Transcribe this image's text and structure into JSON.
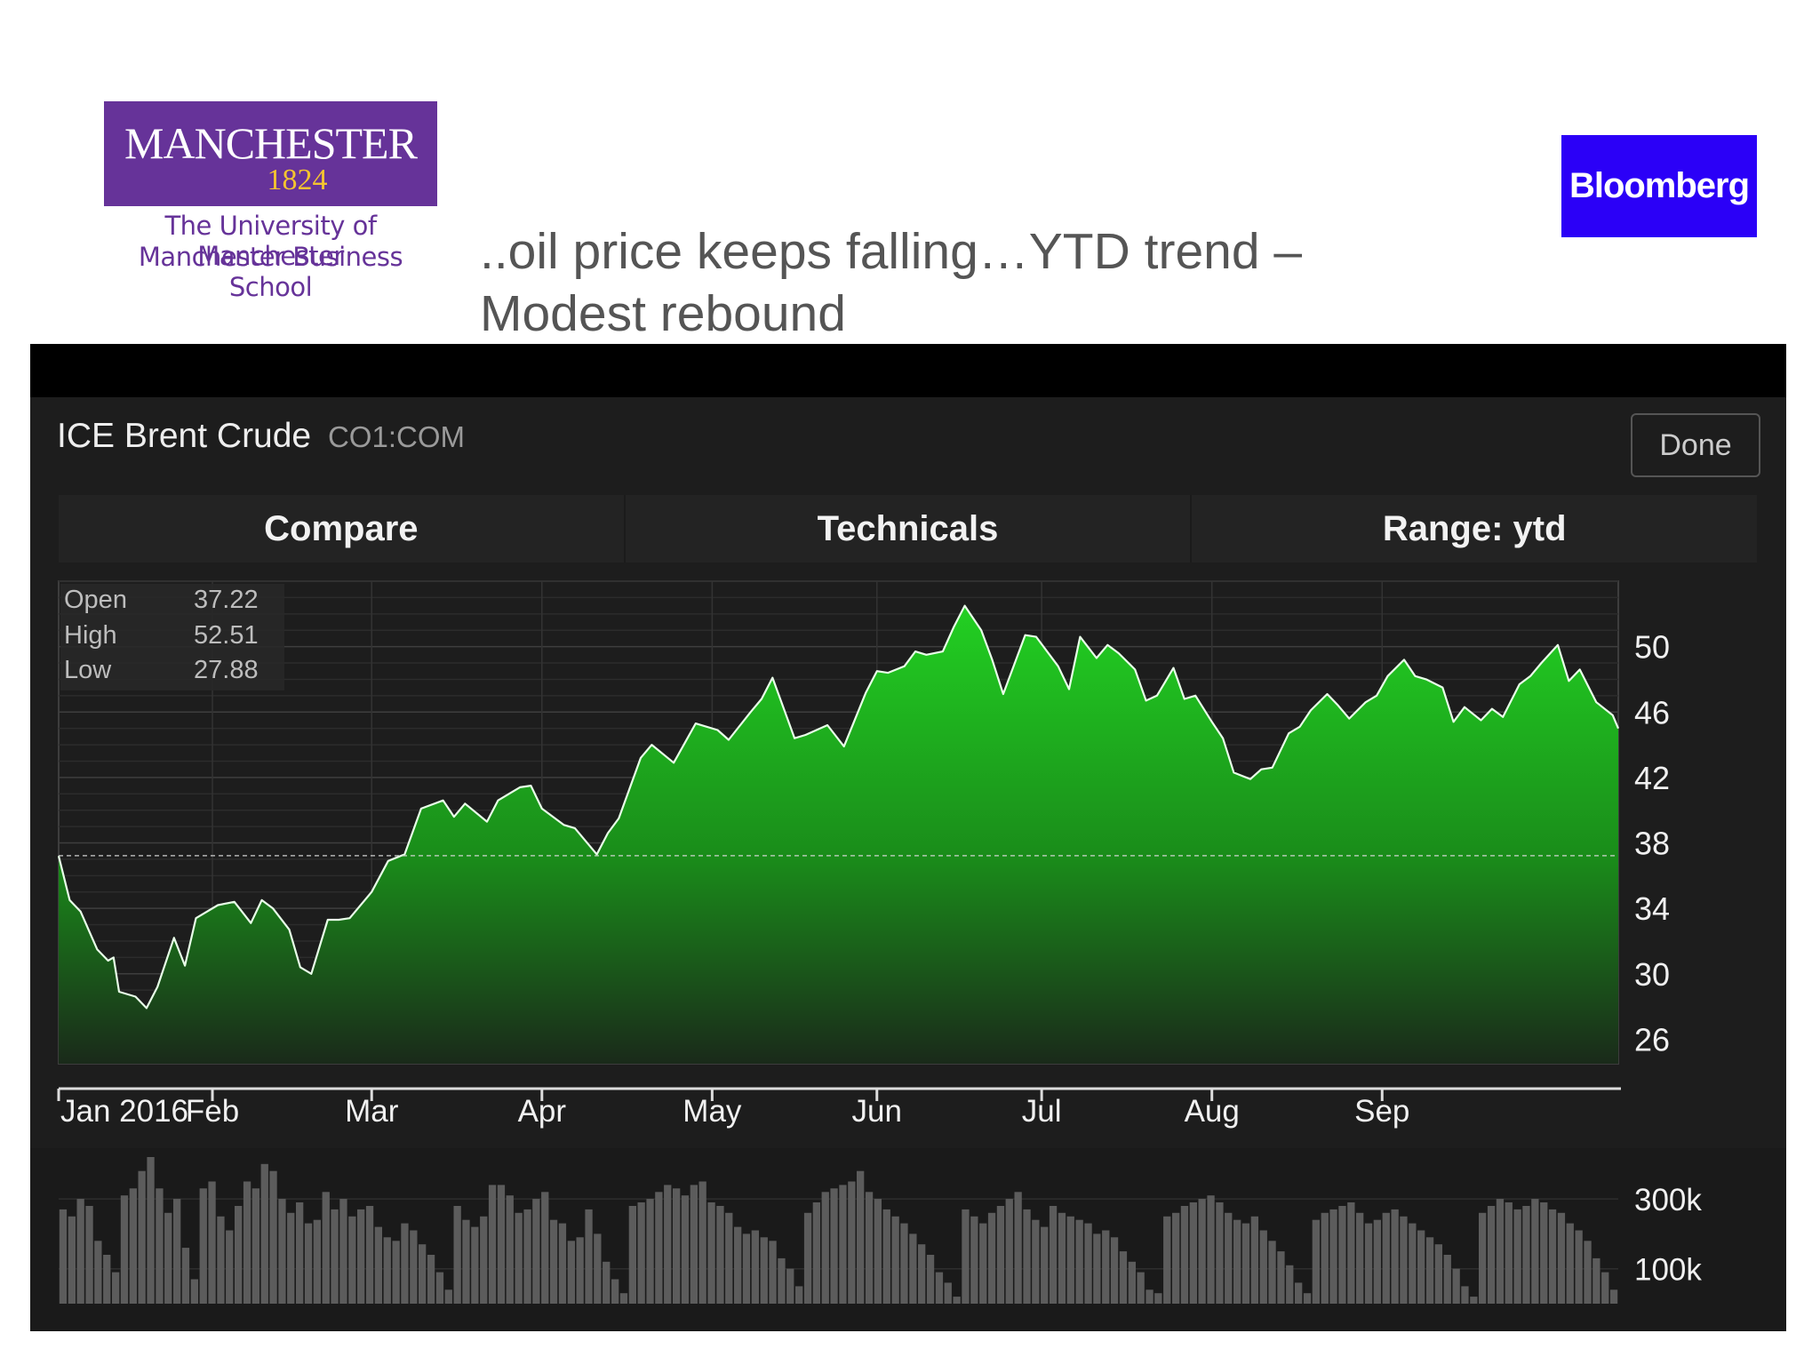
{
  "header": {
    "university_name": "MANCHESTER",
    "university_year": "1824",
    "university_sub1": "The University of Manchester",
    "university_sub2": "Manchester Business School",
    "brand_logo": "Bloomberg",
    "title_line1": "..oil price keeps falling…YTD trend –",
    "title_line2": "Modest rebound"
  },
  "panel": {
    "name": "ICE Brent Crude",
    "ticker": "CO1:COM",
    "done_label": "Done",
    "tabs": [
      "Compare",
      "Technicals",
      "Range: ytd"
    ]
  },
  "stats": [
    {
      "label": "Open",
      "value": "37.22"
    },
    {
      "label": "High",
      "value": "52.51"
    },
    {
      "label": "Low",
      "value": "27.88"
    }
  ],
  "colors": {
    "accent_green": "#22d022",
    "brand_purple": "#663399",
    "brand_gold": "#f4c430",
    "bloomberg_blue": "#2b00f7"
  },
  "chart_data": {
    "type": "area",
    "title": "ICE Brent Crude",
    "x_tick_labels": [
      "Jan 2016",
      "Feb",
      "Mar",
      "Apr",
      "May",
      "Jun",
      "Jul",
      "Aug",
      "Sep"
    ],
    "x_tick_dates": [
      "2016-01-04",
      "2016-02-01",
      "2016-03-01",
      "2016-04-01",
      "2016-05-02",
      "2016-06-01",
      "2016-07-01",
      "2016-08-01",
      "2016-09-01"
    ],
    "y_tick_labels": [
      50,
      46,
      42,
      38,
      34,
      30,
      26
    ],
    "ylim": [
      24.5,
      54
    ],
    "reference_line": 37.22,
    "grid": true,
    "series": [
      {
        "name": "CO1:COM",
        "points": [
          [
            "2016-01-04",
            37.2
          ],
          [
            "2016-01-06",
            34.5
          ],
          [
            "2016-01-08",
            33.8
          ],
          [
            "2016-01-11",
            31.5
          ],
          [
            "2016-01-13",
            30.8
          ],
          [
            "2016-01-14",
            31.0
          ],
          [
            "2016-01-15",
            28.9
          ],
          [
            "2016-01-18",
            28.6
          ],
          [
            "2016-01-20",
            27.9
          ],
          [
            "2016-01-22",
            29.2
          ],
          [
            "2016-01-25",
            32.2
          ],
          [
            "2016-01-27",
            30.5
          ],
          [
            "2016-01-29",
            33.4
          ],
          [
            "2016-02-02",
            34.2
          ],
          [
            "2016-02-05",
            34.4
          ],
          [
            "2016-02-08",
            33.1
          ],
          [
            "2016-02-10",
            34.5
          ],
          [
            "2016-02-12",
            34.0
          ],
          [
            "2016-02-15",
            32.7
          ],
          [
            "2016-02-17",
            30.4
          ],
          [
            "2016-02-19",
            30.0
          ],
          [
            "2016-02-22",
            33.3
          ],
          [
            "2016-02-24",
            33.3
          ],
          [
            "2016-02-26",
            33.4
          ],
          [
            "2016-03-01",
            35.0
          ],
          [
            "2016-03-04",
            36.9
          ],
          [
            "2016-03-07",
            37.3
          ],
          [
            "2016-03-10",
            40.1
          ],
          [
            "2016-03-14",
            40.6
          ],
          [
            "2016-03-16",
            39.6
          ],
          [
            "2016-03-18",
            40.4
          ],
          [
            "2016-03-22",
            39.3
          ],
          [
            "2016-03-24",
            40.6
          ],
          [
            "2016-03-28",
            41.4
          ],
          [
            "2016-03-30",
            41.5
          ],
          [
            "2016-04-01",
            40.1
          ],
          [
            "2016-04-05",
            39.1
          ],
          [
            "2016-04-07",
            38.9
          ],
          [
            "2016-04-11",
            37.3
          ],
          [
            "2016-04-13",
            38.6
          ],
          [
            "2016-04-15",
            39.5
          ],
          [
            "2016-04-19",
            43.2
          ],
          [
            "2016-04-21",
            44.0
          ],
          [
            "2016-04-25",
            42.9
          ],
          [
            "2016-04-27",
            44.1
          ],
          [
            "2016-04-29",
            45.3
          ],
          [
            "2016-05-03",
            44.9
          ],
          [
            "2016-05-05",
            44.3
          ],
          [
            "2016-05-09",
            46.0
          ],
          [
            "2016-05-11",
            46.8
          ],
          [
            "2016-05-13",
            48.1
          ],
          [
            "2016-05-17",
            44.4
          ],
          [
            "2016-05-19",
            44.6
          ],
          [
            "2016-05-23",
            45.2
          ],
          [
            "2016-05-26",
            43.9
          ],
          [
            "2016-05-30",
            47.2
          ],
          [
            "2016-06-01",
            48.5
          ],
          [
            "2016-06-03",
            48.4
          ],
          [
            "2016-06-06",
            48.8
          ],
          [
            "2016-06-08",
            49.7
          ],
          [
            "2016-06-10",
            49.5
          ],
          [
            "2016-06-13",
            49.7
          ],
          [
            "2016-06-15",
            51.2
          ],
          [
            "2016-06-17",
            52.5
          ],
          [
            "2016-06-20",
            51.0
          ],
          [
            "2016-06-22",
            49.2
          ],
          [
            "2016-06-24",
            47.1
          ],
          [
            "2016-06-28",
            50.7
          ],
          [
            "2016-06-30",
            50.6
          ],
          [
            "2016-07-04",
            48.8
          ],
          [
            "2016-07-06",
            47.4
          ],
          [
            "2016-07-08",
            50.6
          ],
          [
            "2016-07-11",
            49.3
          ],
          [
            "2016-07-13",
            50.1
          ],
          [
            "2016-07-15",
            49.6
          ],
          [
            "2016-07-18",
            48.6
          ],
          [
            "2016-07-20",
            46.7
          ],
          [
            "2016-07-22",
            47.0
          ],
          [
            "2016-07-25",
            48.7
          ],
          [
            "2016-07-27",
            46.8
          ],
          [
            "2016-07-29",
            47.0
          ],
          [
            "2016-08-01",
            45.4
          ],
          [
            "2016-08-03",
            44.4
          ],
          [
            "2016-08-05",
            42.3
          ],
          [
            "2016-08-08",
            41.9
          ],
          [
            "2016-08-10",
            42.5
          ],
          [
            "2016-08-12",
            42.6
          ],
          [
            "2016-08-15",
            44.7
          ],
          [
            "2016-08-17",
            45.1
          ],
          [
            "2016-08-19",
            46.1
          ],
          [
            "2016-08-22",
            47.1
          ],
          [
            "2016-08-24",
            46.4
          ],
          [
            "2016-08-26",
            45.6
          ],
          [
            "2016-08-29",
            46.6
          ],
          [
            "2016-08-31",
            47.0
          ],
          [
            "2016-09-02",
            48.2
          ],
          [
            "2016-09-05",
            49.2
          ],
          [
            "2016-09-07",
            48.2
          ],
          [
            "2016-09-09",
            48.0
          ],
          [
            "2016-09-12",
            47.5
          ],
          [
            "2016-09-14",
            45.4
          ],
          [
            "2016-09-16",
            46.3
          ],
          [
            "2016-09-19",
            45.5
          ],
          [
            "2016-09-21",
            46.2
          ],
          [
            "2016-09-23",
            45.7
          ],
          [
            "2016-09-26",
            47.7
          ],
          [
            "2016-09-28",
            48.2
          ],
          [
            "2016-09-30",
            49.0
          ],
          [
            "2016-10-03",
            50.1
          ],
          [
            "2016-10-05",
            47.9
          ],
          [
            "2016-10-07",
            48.6
          ],
          [
            "2016-10-10",
            46.6
          ],
          [
            "2016-10-13",
            45.8
          ],
          [
            "2016-10-14",
            45.0
          ]
        ]
      }
    ],
    "volume": {
      "y_tick_labels": [
        "300k",
        "100k"
      ],
      "ylim": [
        0,
        425000
      ],
      "values": [
        270000,
        250000,
        300000,
        280000,
        180000,
        140000,
        90000,
        310000,
        330000,
        380000,
        420000,
        330000,
        260000,
        300000,
        160000,
        70000,
        330000,
        350000,
        250000,
        210000,
        280000,
        350000,
        330000,
        400000,
        380000,
        300000,
        260000,
        290000,
        230000,
        240000,
        320000,
        270000,
        300000,
        250000,
        270000,
        280000,
        220000,
        190000,
        180000,
        230000,
        210000,
        170000,
        140000,
        90000,
        40000,
        280000,
        240000,
        220000,
        250000,
        340000,
        340000,
        310000,
        260000,
        270000,
        300000,
        320000,
        240000,
        230000,
        180000,
        190000,
        270000,
        200000,
        120000,
        70000,
        30000,
        280000,
        290000,
        300000,
        320000,
        340000,
        330000,
        310000,
        340000,
        350000,
        290000,
        280000,
        260000,
        220000,
        200000,
        210000,
        190000,
        180000,
        130000,
        100000,
        50000,
        260000,
        290000,
        320000,
        330000,
        340000,
        350000,
        380000,
        320000,
        300000,
        270000,
        250000,
        230000,
        200000,
        170000,
        140000,
        90000,
        60000,
        20000,
        270000,
        250000,
        230000,
        260000,
        280000,
        300000,
        320000,
        270000,
        240000,
        220000,
        280000,
        260000,
        250000,
        240000,
        230000,
        200000,
        210000,
        190000,
        150000,
        120000,
        90000,
        40000,
        30000,
        250000,
        260000,
        280000,
        290000,
        300000,
        310000,
        290000,
        260000,
        240000,
        230000,
        250000,
        210000,
        180000,
        150000,
        110000,
        60000,
        30000,
        240000,
        260000,
        270000,
        280000,
        290000,
        260000,
        230000,
        240000,
        260000,
        270000,
        250000,
        230000,
        210000,
        190000,
        170000,
        140000,
        100000,
        50000,
        20000,
        260000,
        280000,
        300000,
        290000,
        270000,
        280000,
        300000,
        290000,
        270000,
        260000,
        230000,
        210000,
        180000,
        130000,
        90000,
        40000
      ]
    }
  }
}
